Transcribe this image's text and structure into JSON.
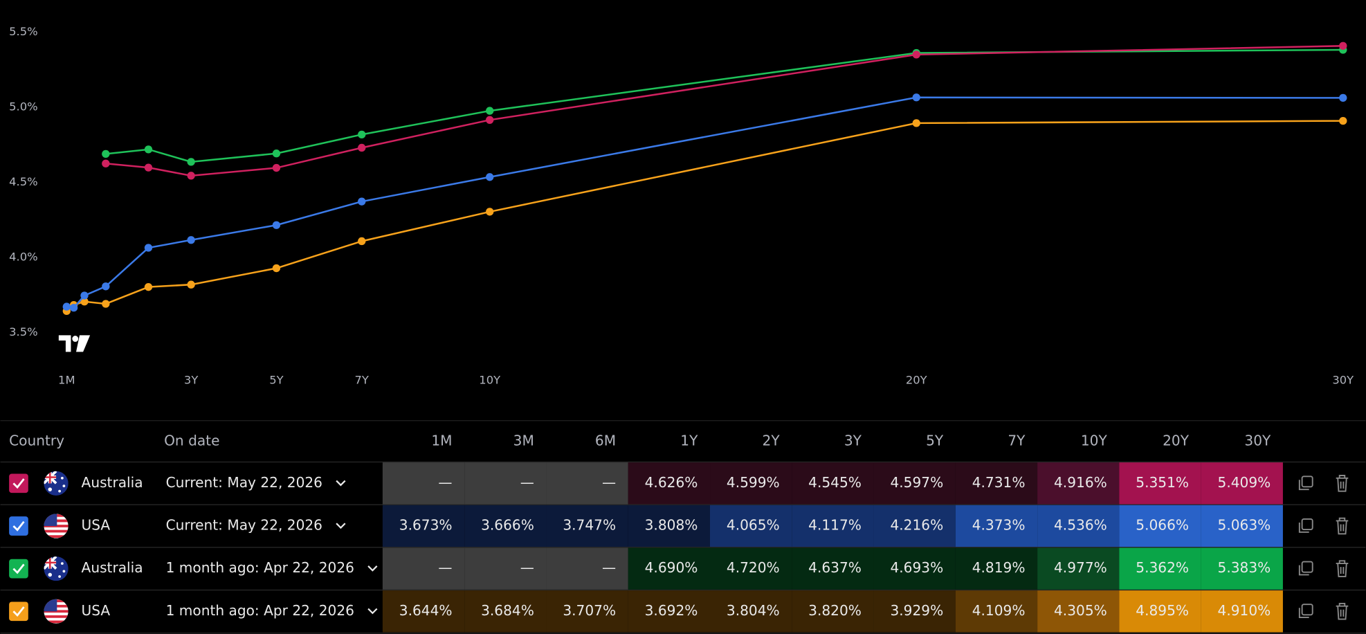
{
  "chart_data": {
    "type": "line",
    "x": [
      0.0833,
      0.25,
      0.5,
      1,
      2,
      3,
      5,
      7,
      10,
      20,
      30
    ],
    "xlim": [
      -1.47,
      30.53
    ],
    "xticks": [
      {
        "value": 0.0833,
        "label": "1M"
      },
      {
        "value": 3,
        "label": "3Y"
      },
      {
        "value": 5,
        "label": "5Y"
      },
      {
        "value": 7,
        "label": "7Y"
      },
      {
        "value": 10,
        "label": "10Y"
      },
      {
        "value": 20,
        "label": "20Y"
      },
      {
        "value": 30,
        "label": "30Y"
      }
    ],
    "ylim": [
      3.3,
      5.7
    ],
    "yticks": [
      {
        "value": 3.5,
        "label": "3.5%"
      },
      {
        "value": 4.0,
        "label": "4.0%"
      },
      {
        "value": 4.5,
        "label": "4.5%"
      },
      {
        "value": 5.0,
        "label": "5.0%"
      },
      {
        "value": 5.5,
        "label": "5.5%"
      }
    ],
    "grid": false,
    "series": [
      {
        "color": "#d0215f",
        "values": [
          null,
          null,
          null,
          4.626,
          4.599,
          4.545,
          4.597,
          4.731,
          4.916,
          5.351,
          5.409
        ]
      },
      {
        "color": "#3b7ae8",
        "values": [
          3.673,
          3.666,
          3.747,
          3.808,
          4.065,
          4.117,
          4.216,
          4.373,
          4.536,
          5.066,
          5.063
        ]
      },
      {
        "color": "#1fc25a",
        "values": [
          null,
          null,
          null,
          4.69,
          4.72,
          4.637,
          4.693,
          4.819,
          4.977,
          5.362,
          5.383
        ]
      },
      {
        "color": "#f7a21b",
        "values": [
          3.644,
          3.684,
          3.707,
          3.692,
          3.804,
          3.82,
          3.929,
          4.109,
          4.305,
          4.895,
          4.91
        ]
      }
    ]
  },
  "table": {
    "headers": [
      "Country",
      "On date",
      "1M",
      "3M",
      "6M",
      "1Y",
      "2Y",
      "3Y",
      "5Y",
      "7Y",
      "10Y",
      "20Y",
      "30Y"
    ],
    "rows": [
      {
        "country": "Australia",
        "flag": "australia",
        "check_color": "#c2185b",
        "date": "Current: May 22, 2026",
        "cells": [
          "—",
          "—",
          "—",
          "4.626%",
          "4.599%",
          "4.545%",
          "4.597%",
          "4.731%",
          "4.916%",
          "5.351%",
          "5.409%"
        ],
        "colors": [
          "#3d3d3d",
          "#3d3d3d",
          "#3d3d3d",
          "#2b0b19",
          "#2b0b19",
          "#2b0b19",
          "#2b0b19",
          "#2b0b19",
          "#4b0f2c",
          "#a3124f",
          "#a3124f"
        ]
      },
      {
        "country": "USA",
        "flag": "usa",
        "check_color": "#2f6fe0",
        "date": "Current: May 22, 2026",
        "cells": [
          "3.673%",
          "3.666%",
          "3.747%",
          "3.808%",
          "4.065%",
          "4.117%",
          "4.216%",
          "4.373%",
          "4.536%",
          "5.066%",
          "5.063%"
        ],
        "colors": [
          "#0c1a3a",
          "#0c1a3a",
          "#0c1a3a",
          "#0c1a3a",
          "#14306b",
          "#14306b",
          "#14306b",
          "#1d4a9f",
          "#1d4a9f",
          "#2962c8",
          "#2962c8"
        ]
      },
      {
        "country": "Australia",
        "flag": "australia",
        "check_color": "#13b352",
        "date": "1 month ago: Apr 22, 2026",
        "cells": [
          "—",
          "—",
          "—",
          "4.690%",
          "4.720%",
          "4.637%",
          "4.693%",
          "4.819%",
          "4.977%",
          "5.362%",
          "5.383%"
        ],
        "colors": [
          "#3d3d3d",
          "#3d3d3d",
          "#3d3d3d",
          "#042a12",
          "#042a12",
          "#042a12",
          "#042a12",
          "#042a12",
          "#0a4a22",
          "#0aa548",
          "#0aa548"
        ]
      },
      {
        "country": "USA",
        "flag": "usa",
        "check_color": "#f59f1b",
        "date": "1 month ago: Apr 22, 2026",
        "cells": [
          "3.644%",
          "3.684%",
          "3.707%",
          "3.692%",
          "3.804%",
          "3.820%",
          "3.929%",
          "4.109%",
          "4.305%",
          "4.895%",
          "4.910%"
        ],
        "colors": [
          "#3a2404",
          "#3a2404",
          "#3a2404",
          "#3a2404",
          "#3a2404",
          "#3a2404",
          "#3a2404",
          "#5e3a05",
          "#8e5606",
          "#d98a06",
          "#d98a06"
        ]
      }
    ]
  }
}
